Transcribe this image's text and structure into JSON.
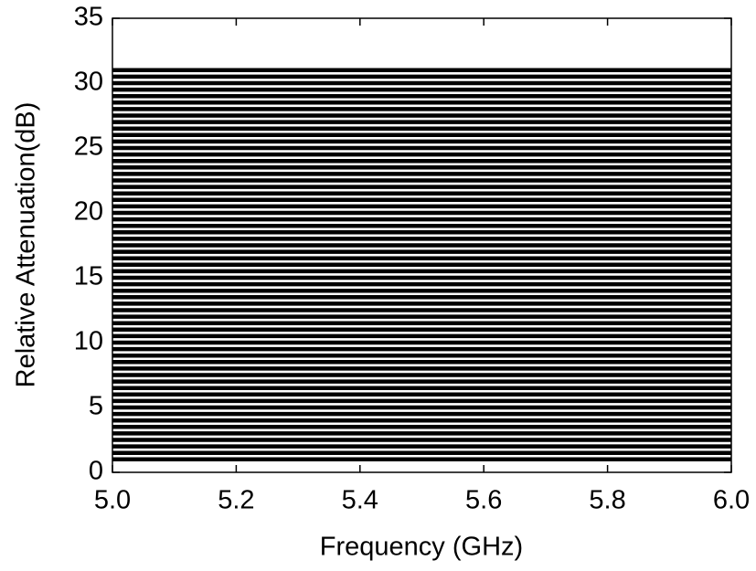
{
  "chart_data": {
    "type": "line",
    "xlabel": "Frequency (GHz)",
    "ylabel": "Relative Attenuation(dB)",
    "x": [
      5.0,
      6.0
    ],
    "color": "#000000",
    "series": [
      {
        "values": [
          1,
          1
        ]
      },
      {
        "values": [
          1.5,
          1.5
        ]
      },
      {
        "values": [
          2,
          2
        ]
      },
      {
        "values": [
          2.5,
          2.5
        ]
      },
      {
        "values": [
          3,
          3
        ]
      },
      {
        "values": [
          3.5,
          3.5
        ]
      },
      {
        "values": [
          4,
          4
        ]
      },
      {
        "values": [
          4.5,
          4.5
        ]
      },
      {
        "values": [
          5,
          5
        ]
      },
      {
        "values": [
          5.5,
          5.5
        ]
      },
      {
        "values": [
          6,
          6
        ]
      },
      {
        "values": [
          6.5,
          6.5
        ]
      },
      {
        "values": [
          7,
          7
        ]
      },
      {
        "values": [
          7.5,
          7.5
        ]
      },
      {
        "values": [
          8,
          8
        ]
      },
      {
        "values": [
          8.5,
          8.5
        ]
      },
      {
        "values": [
          9,
          9
        ]
      },
      {
        "values": [
          9.5,
          9.5
        ]
      },
      {
        "values": [
          10,
          10
        ]
      },
      {
        "values": [
          10.5,
          10.5
        ]
      },
      {
        "values": [
          11,
          11
        ]
      },
      {
        "values": [
          11.5,
          11.5
        ]
      },
      {
        "values": [
          12,
          12
        ]
      },
      {
        "values": [
          12.5,
          12.5
        ]
      },
      {
        "values": [
          13,
          13
        ]
      },
      {
        "values": [
          13.5,
          13.5
        ]
      },
      {
        "values": [
          14,
          14
        ]
      },
      {
        "values": [
          14.5,
          14.5
        ]
      },
      {
        "values": [
          15,
          15
        ]
      },
      {
        "values": [
          15.5,
          15.5
        ]
      },
      {
        "values": [
          16,
          16
        ]
      },
      {
        "values": [
          16.5,
          16.5
        ]
      },
      {
        "values": [
          17,
          17
        ]
      },
      {
        "values": [
          17.5,
          17.5
        ]
      },
      {
        "values": [
          18,
          18
        ]
      },
      {
        "values": [
          18.5,
          18.5
        ]
      },
      {
        "values": [
          19,
          19
        ]
      },
      {
        "values": [
          19.5,
          19.5
        ]
      },
      {
        "values": [
          20,
          20
        ]
      },
      {
        "values": [
          20.5,
          20.5
        ]
      },
      {
        "values": [
          21,
          21
        ]
      },
      {
        "values": [
          21.5,
          21.5
        ]
      },
      {
        "values": [
          22,
          22
        ]
      },
      {
        "values": [
          22.5,
          22.5
        ]
      },
      {
        "values": [
          23,
          23
        ]
      },
      {
        "values": [
          23.5,
          23.5
        ]
      },
      {
        "values": [
          24,
          24
        ]
      },
      {
        "values": [
          24.5,
          24.5
        ]
      },
      {
        "values": [
          25,
          25
        ]
      },
      {
        "values": [
          25.5,
          25.5
        ]
      },
      {
        "values": [
          26,
          26
        ]
      },
      {
        "values": [
          26.5,
          26.5
        ]
      },
      {
        "values": [
          27,
          27
        ]
      },
      {
        "values": [
          27.5,
          27.5
        ]
      },
      {
        "values": [
          28,
          28
        ]
      },
      {
        "values": [
          28.5,
          28.5
        ]
      },
      {
        "values": [
          29,
          29
        ]
      },
      {
        "values": [
          29.5,
          29.5
        ]
      },
      {
        "values": [
          30,
          30
        ]
      },
      {
        "values": [
          30.5,
          30.5
        ]
      },
      {
        "values": [
          31,
          31
        ]
      }
    ],
    "xlim": [
      5.0,
      6.0
    ],
    "xticks": [
      {
        "value": 5.0,
        "label": "5.0"
      },
      {
        "value": 5.2,
        "label": "5.2"
      },
      {
        "value": 5.4,
        "label": "5.4"
      },
      {
        "value": 5.6,
        "label": "5.6"
      },
      {
        "value": 5.8,
        "label": "5.8"
      },
      {
        "value": 6.0,
        "label": "6.0"
      }
    ],
    "ylim": [
      0,
      35
    ],
    "yticks": [
      0,
      5,
      10,
      15,
      20,
      25,
      30,
      35
    ]
  }
}
